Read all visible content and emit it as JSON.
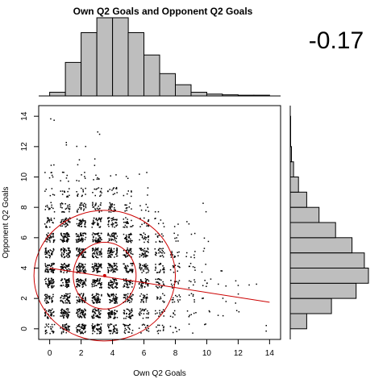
{
  "chart_data": {
    "type": "scatter",
    "title": "Own Q2 Goals and Opponent Q2 Goals",
    "correlation_label": "-0.17",
    "xlabel": "Own Q2 Goals",
    "ylabel": "Opponent Q2 Goals",
    "xlim": [
      -0.7,
      14.7
    ],
    "ylim": [
      -0.7,
      14.7
    ],
    "x_ticks": [
      0,
      2,
      4,
      6,
      8,
      10,
      12,
      14
    ],
    "y_ticks": [
      0,
      2,
      4,
      6,
      8,
      10,
      12,
      14
    ],
    "grid": false,
    "colors": {
      "points": "#000000",
      "fit": "#cc0000",
      "hist_fill": "#bebebe",
      "hist_edge": "#000000"
    },
    "scatter_density": [
      {
        "y": 0,
        "x_counts": [
          4,
          5,
          6,
          6,
          5,
          4,
          3,
          3,
          2,
          1,
          1,
          0,
          0,
          0,
          1
        ]
      },
      {
        "y": 1,
        "x_counts": [
          5,
          6,
          6,
          6,
          6,
          5,
          4,
          3,
          2,
          2,
          1,
          1,
          1,
          0,
          0
        ]
      },
      {
        "y": 2,
        "x_counts": [
          5,
          6,
          6,
          6,
          6,
          5,
          4,
          3,
          3,
          2,
          1,
          1,
          1,
          0,
          0
        ]
      },
      {
        "y": 3,
        "x_counts": [
          6,
          6,
          6,
          6,
          6,
          5,
          5,
          4,
          3,
          2,
          2,
          1,
          1,
          1,
          0
        ]
      },
      {
        "y": 4,
        "x_counts": [
          6,
          6,
          6,
          6,
          6,
          5,
          5,
          4,
          3,
          2,
          1,
          1,
          0,
          0,
          0
        ]
      },
      {
        "y": 5,
        "x_counts": [
          5,
          6,
          6,
          6,
          6,
          5,
          5,
          4,
          3,
          2,
          1,
          0,
          0,
          0,
          0
        ]
      },
      {
        "y": 6,
        "x_counts": [
          5,
          6,
          6,
          6,
          5,
          5,
          4,
          3,
          2,
          1,
          1,
          0,
          0,
          0,
          0
        ]
      },
      {
        "y": 7,
        "x_counts": [
          4,
          5,
          5,
          5,
          5,
          4,
          3,
          2,
          1,
          1,
          0,
          0,
          0,
          0,
          0
        ]
      },
      {
        "y": 8,
        "x_counts": [
          3,
          4,
          4,
          4,
          4,
          3,
          2,
          1,
          0,
          0,
          1,
          0,
          0,
          0,
          0
        ]
      },
      {
        "y": 9,
        "x_counts": [
          2,
          3,
          3,
          3,
          3,
          2,
          1,
          0,
          0,
          0,
          0,
          0,
          0,
          0,
          0
        ]
      },
      {
        "y": 10,
        "x_counts": [
          2,
          2,
          2,
          2,
          1,
          1,
          1,
          0,
          0,
          0,
          0,
          0,
          0,
          0,
          0
        ]
      },
      {
        "y": 11,
        "x_counts": [
          1,
          0,
          1,
          1,
          0,
          0,
          0,
          0,
          0,
          0,
          0,
          0,
          0,
          0,
          0
        ]
      },
      {
        "y": 12,
        "x_counts": [
          0,
          1,
          1,
          0,
          0,
          0,
          0,
          0,
          0,
          0,
          0,
          0,
          0,
          0,
          0
        ]
      },
      {
        "y": 13,
        "x_counts": [
          0,
          0,
          0,
          1,
          0,
          0,
          0,
          0,
          0,
          0,
          0,
          0,
          0,
          0,
          0
        ]
      },
      {
        "y": 14,
        "x_counts": [
          1,
          0,
          0,
          0,
          0,
          0,
          0,
          0,
          0,
          0,
          0,
          0,
          0,
          0,
          0
        ]
      }
    ],
    "fit_line": {
      "x": [
        0,
        14
      ],
      "y": [
        4.0,
        1.75
      ]
    },
    "centroid": {
      "x": 3.5,
      "y": 3.5
    },
    "ellipses": [
      {
        "rx": 2.0,
        "ry": 2.2
      },
      {
        "rx": 4.5,
        "ry": 4.3
      }
    ],
    "x_histogram": {
      "bins": [
        0,
        1,
        2,
        3,
        4,
        5,
        6,
        7,
        8,
        9,
        10,
        11,
        12,
        13,
        14
      ],
      "density": [
        0.01,
        0.09,
        0.17,
        0.21,
        0.21,
        0.17,
        0.11,
        0.06,
        0.03,
        0.01,
        0.005,
        0.003,
        0.002,
        0.002
      ]
    },
    "y_histogram": {
      "bins": [
        0,
        1,
        2,
        3,
        4,
        5,
        6,
        7,
        8,
        9,
        10,
        11,
        12,
        13,
        14
      ],
      "density": [
        0.04,
        0.1,
        0.16,
        0.19,
        0.18,
        0.15,
        0.11,
        0.07,
        0.04,
        0.02,
        0.008,
        0.003,
        0.001,
        0.001
      ]
    }
  }
}
